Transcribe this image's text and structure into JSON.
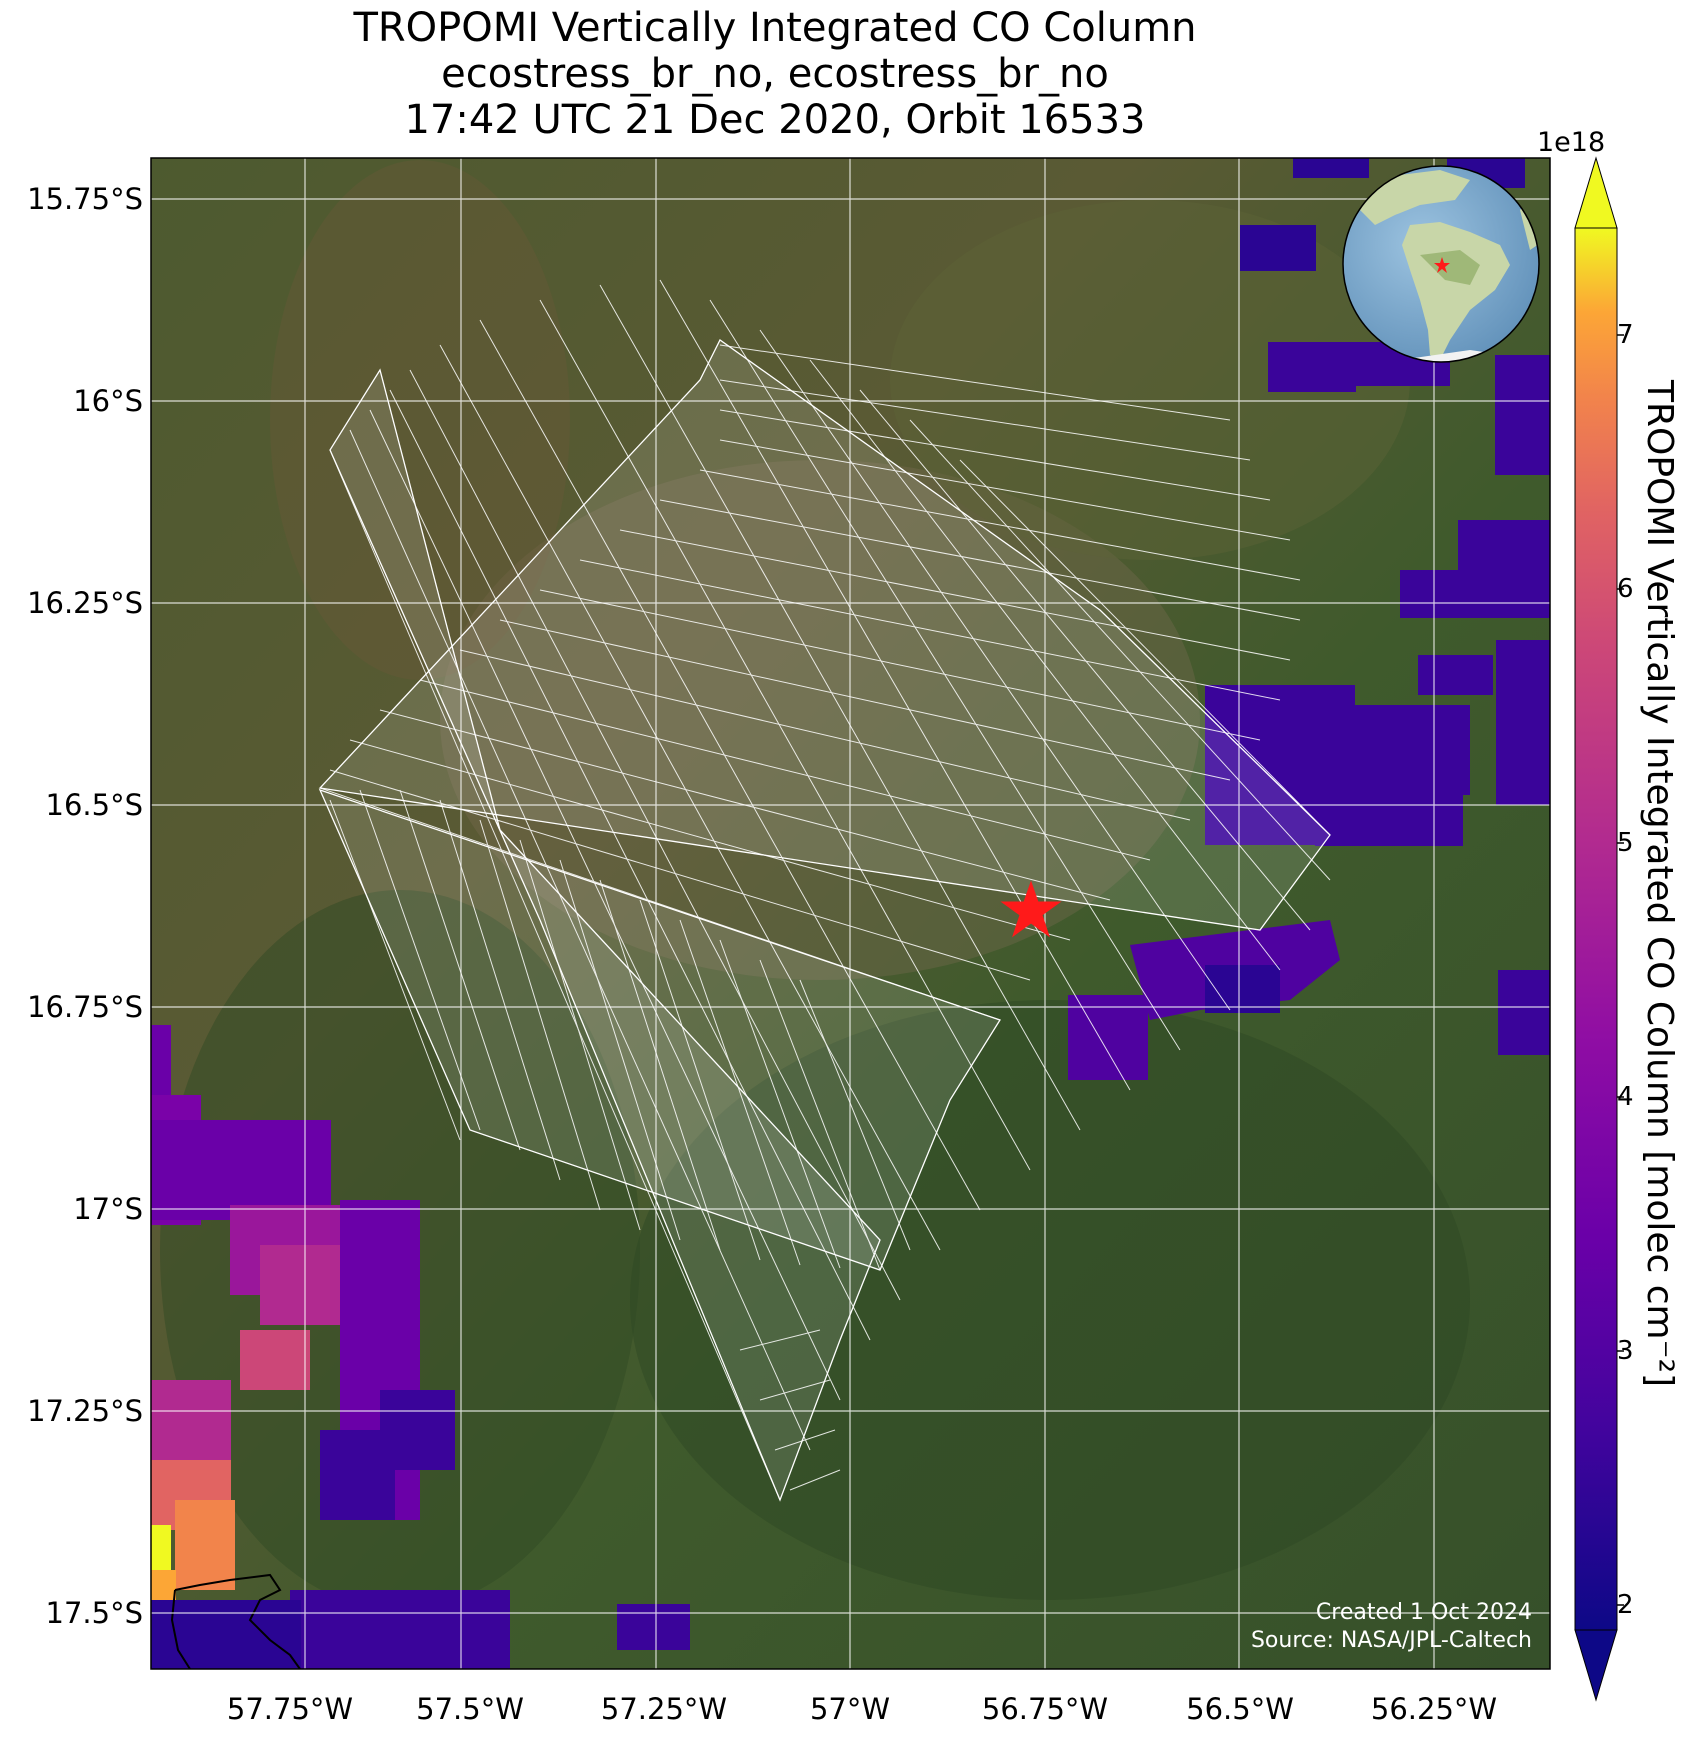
{
  "title": {
    "line1": "TROPOMI Vertically Integrated CO Column",
    "line2": "ecostress_br_no, ecostress_br_no",
    "line3": "17:42 UTC 21 Dec 2020, Orbit 16533"
  },
  "axes": {
    "lat_ticks": [
      "15.75°S",
      "16°S",
      "16.25°S",
      "16.5°S",
      "16.75°S",
      "17°S",
      "17.25°S",
      "17.5°S"
    ],
    "lon_ticks": [
      "57.75°W",
      "57.5°W",
      "57.25°W",
      "57°W",
      "56.75°W",
      "56.5°W",
      "56.25°W"
    ]
  },
  "colorbar": {
    "label": "TROPOMI Vertically Integrated CO Column [molec cm⁻²]",
    "exponent": "1e18",
    "ticks": [
      "2",
      "3",
      "4",
      "5",
      "6",
      "7"
    ],
    "colormap": "plasma",
    "extend": "both"
  },
  "credits": {
    "created": "Created 1 Oct 2024",
    "source": "Source: NASA/JPL-Caltech"
  },
  "map": {
    "background": "satellite imagery",
    "target_marker": "red-star",
    "target_lon": -56.74,
    "target_lat": -16.61,
    "inset": "orthographic globe centered on South America with red star"
  }
}
